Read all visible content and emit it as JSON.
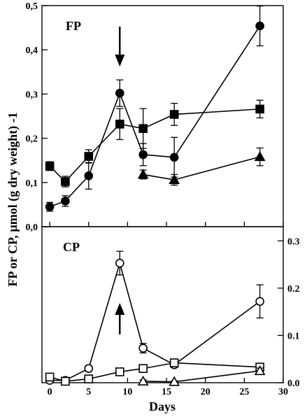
{
  "chart_data": [
    {
      "type": "line",
      "panel": "top",
      "panel_label": "FP",
      "xlabel": "Days",
      "ylabel": "FP or CP, µmol (g dry weight) -1",
      "xlim": [
        -1,
        30
      ],
      "ylim": [
        0.0,
        0.5
      ],
      "y_ticks": [
        "0,0",
        "0,1",
        "0,2",
        "0,3",
        "0,4",
        "0,5"
      ],
      "y_tick_values": [
        0.0,
        0.1,
        0.2,
        0.3,
        0.4,
        0.5
      ],
      "y_axis_side": "left",
      "annotation": "downward arrow at day 9",
      "grid": false,
      "series": [
        {
          "marker": "filled-circle",
          "x": [
            0,
            2,
            5,
            9,
            12,
            16,
            27
          ],
          "y": [
            0.045,
            0.058,
            0.115,
            0.302,
            0.163,
            0.157,
            0.454
          ],
          "err": [
            0.01,
            0.012,
            0.03,
            0.03,
            0.025,
            0.045,
            0.045
          ]
        },
        {
          "marker": "filled-square",
          "x": [
            0,
            2,
            5,
            9,
            12,
            16,
            27
          ],
          "y": [
            0.137,
            0.102,
            0.159,
            0.232,
            0.222,
            0.254,
            0.266
          ],
          "err": [
            0.01,
            0.012,
            0.015,
            0.035,
            0.045,
            0.025,
            0.02
          ]
        },
        {
          "marker": "filled-triangle",
          "x": [
            12,
            16,
            27
          ],
          "y": [
            0.118,
            0.106,
            0.158
          ],
          "err": [
            0.01,
            0.012,
            0.02
          ]
        }
      ]
    },
    {
      "type": "line",
      "panel": "bottom",
      "panel_label": "CP",
      "xlim": [
        -1,
        30
      ],
      "ylim": [
        0.0,
        0.33
      ],
      "y_ticks": [
        "0.0",
        "0.1",
        "0.2",
        "0.3"
      ],
      "y_tick_values": [
        0.0,
        0.1,
        0.2,
        0.3
      ],
      "y_axis_side": "right",
      "x_ticks": [
        "0",
        "5",
        "10",
        "15",
        "20",
        "25",
        "30"
      ],
      "x_tick_values": [
        0,
        5,
        10,
        15,
        20,
        25,
        30
      ],
      "annotation": "upward arrow at day 9",
      "grid": false,
      "series": [
        {
          "marker": "open-circle",
          "x": [
            0,
            2,
            5,
            9,
            12,
            16,
            27
          ],
          "y": [
            0.005,
            0.005,
            0.03,
            0.253,
            0.073,
            0.038,
            0.172
          ],
          "err": [
            0.004,
            0.004,
            0.006,
            0.025,
            0.01,
            0.006,
            0.035
          ]
        },
        {
          "marker": "open-square",
          "x": [
            0,
            2,
            5,
            9,
            12,
            16,
            27
          ],
          "y": [
            0.012,
            0.003,
            0.008,
            0.023,
            0.03,
            0.042,
            0.033
          ],
          "err": [
            0.004,
            0.003,
            0.004,
            0.006,
            0.006,
            0.006,
            0.006
          ]
        },
        {
          "marker": "open-triangle",
          "x": [
            12,
            16,
            27
          ],
          "y": [
            0.003,
            0.002,
            0.025
          ],
          "err": [
            0.003,
            0.002,
            0.006
          ]
        }
      ]
    }
  ]
}
